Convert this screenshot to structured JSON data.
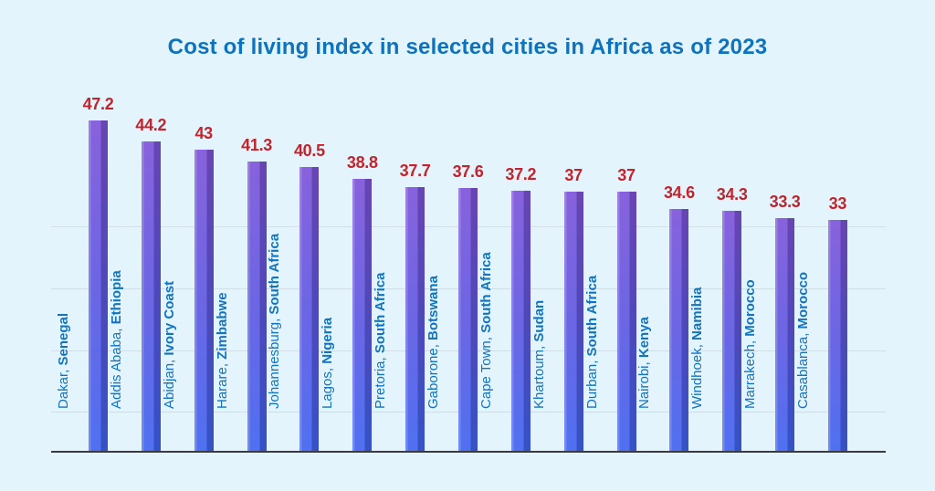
{
  "page": {
    "background": "#e3f4fc"
  },
  "title": {
    "text": "Cost of living index in selected cities in Africa as of 2023"
  },
  "colors": {
    "title_blue": "#0f72bc",
    "city_label_blue": "#1274be",
    "value_label_red": "#c1242d",
    "gridline": "#d2dde4",
    "baseline": "#3a3a44",
    "bar_gradient_top": "#7e55d9",
    "bar_gradient_bottom": "#4065f0"
  },
  "chart_data": {
    "type": "bar",
    "title": "Cost of living index in selected cities in Africa as of 2023",
    "categories": [
      "Dakar, Senegal",
      "Addis Ababa, Ethiopia",
      "Abidjan, Ivory Coast",
      "Harare, Zimbabwe",
      "Johannesburg, South Africa",
      "Lagos, Nigeria",
      "Pretoria, South Africa",
      "Gaborone, Botswana",
      "Cape Town, South Africa",
      "Khartoum, Sudan",
      "Durban, South Africa",
      "Nairobi, Kenya",
      "Windhoek, Namibia",
      "Marrakech, Morocco",
      "Casablanca, Morocco"
    ],
    "values": [
      47.2,
      44.2,
      43,
      41.3,
      40.5,
      38.8,
      37.7,
      37.6,
      37.2,
      37,
      37,
      34.6,
      34.3,
      33.3,
      33
    ],
    "items": [
      {
        "city": "Dakar,",
        "country": "Senegal",
        "value": 47.2
      },
      {
        "city": "Addis Ababa,",
        "country": "Ethiopia",
        "value": 44.2
      },
      {
        "city": "Abidjan,",
        "country": "Ivory Coast",
        "value": 43
      },
      {
        "city": "Harare,",
        "country": "Zimbabwe",
        "value": 41.3
      },
      {
        "city": "Johannesburg,",
        "country": "South Africa",
        "value": 40.5
      },
      {
        "city": "Lagos,",
        "country": "Nigeria",
        "value": 38.8
      },
      {
        "city": "Pretoria,",
        "country": "South Africa",
        "value": 37.7
      },
      {
        "city": "Gaborone,",
        "country": "Botswana",
        "value": 37.6
      },
      {
        "city": "Cape Town,",
        "country": "South Africa",
        "value": 37.2
      },
      {
        "city": "Khartoum,",
        "country": "Sudan",
        "value": 37
      },
      {
        "city": "Durban,",
        "country": "South Africa",
        "value": 37
      },
      {
        "city": "Nairobi,",
        "country": "Kenya",
        "value": 34.6
      },
      {
        "city": "Windhoek,",
        "country": "Namibia",
        "value": 34.3
      },
      {
        "city": "Marrakech,",
        "country": "Morocco",
        "value": 33.3
      },
      {
        "city": "Casablanca,",
        "country": "Morocco",
        "value": 33
      }
    ],
    "xlabel": "",
    "ylabel": "",
    "ylim": [
      0,
      50
    ],
    "grid": "horizontal gridlines, unlabeled (no visible axis tick values)",
    "legend": "none",
    "annotations": "value labels in red above each bar; category labels rotated 90° placed left of each bar, country name in bold"
  }
}
